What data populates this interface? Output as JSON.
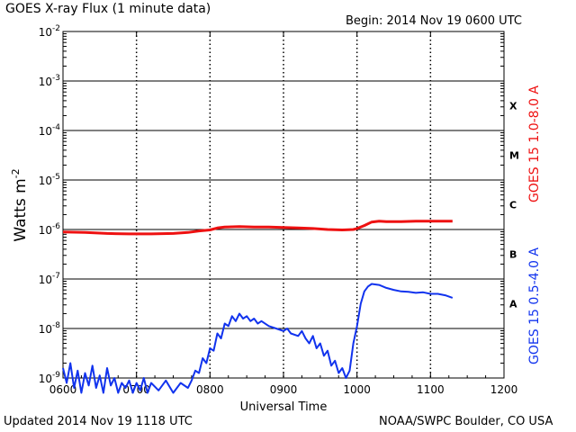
{
  "header": {
    "title": "GOES X-ray Flux (1 minute data)",
    "begin": "Begin: 2014 Nov 19 0600 UTC"
  },
  "footer": {
    "updated": "Updated 2014 Nov 19 1118 UTC",
    "credit": "NOAA/SWPC Boulder, CO USA"
  },
  "chart_data": {
    "type": "line",
    "title": "GOES X-ray Flux (1 minute data)",
    "xlabel": "Universal Time",
    "ylabel_base": "Watts m",
    "ylabel_sup": "-2",
    "x_unit": "UTC (HHMM)",
    "xlim": [
      6,
      12
    ],
    "x_ticks": [
      {
        "value": 6,
        "label": "0600"
      },
      {
        "value": 7,
        "label": "0700"
      },
      {
        "value": 8,
        "label": "0800"
      },
      {
        "value": 9,
        "label": "0900"
      },
      {
        "value": 10,
        "label": "1000"
      },
      {
        "value": 11,
        "label": "1100"
      },
      {
        "value": 12,
        "label": "1200"
      }
    ],
    "y_scale": "log",
    "ylim_exp": [
      -9,
      -2
    ],
    "y_ticks": [
      {
        "exp": -9,
        "base": "10",
        "sup": "-9"
      },
      {
        "exp": -8,
        "base": "10",
        "sup": "-8"
      },
      {
        "exp": -7,
        "base": "10",
        "sup": "-7"
      },
      {
        "exp": -6,
        "base": "10",
        "sup": "-6"
      },
      {
        "exp": -5,
        "base": "10",
        "sup": "-5"
      },
      {
        "exp": -4,
        "base": "10",
        "sup": "-4"
      },
      {
        "exp": -3,
        "base": "10",
        "sup": "-3"
      },
      {
        "exp": -2,
        "base": "10",
        "sup": "-2"
      }
    ],
    "flare_classes": [
      {
        "label": "A",
        "exp": -7.5
      },
      {
        "label": "B",
        "exp": -6.5
      },
      {
        "label": "C",
        "exp": -5.5
      },
      {
        "label": "M",
        "exp": -4.5
      },
      {
        "label": "X",
        "exp": -3.5
      }
    ],
    "grid": true,
    "series": [
      {
        "name": "GOES 15 1.0-8.0 A",
        "color": "#ee1111",
        "points": [
          [
            6.0,
            -6.05
          ],
          [
            6.3,
            -6.06
          ],
          [
            6.6,
            -6.08
          ],
          [
            6.9,
            -6.09
          ],
          [
            7.2,
            -6.09
          ],
          [
            7.5,
            -6.08
          ],
          [
            7.7,
            -6.06
          ],
          [
            7.85,
            -6.03
          ],
          [
            8.0,
            -6.01
          ],
          [
            8.1,
            -5.97
          ],
          [
            8.2,
            -5.95
          ],
          [
            8.4,
            -5.94
          ],
          [
            8.6,
            -5.95
          ],
          [
            8.8,
            -5.95
          ],
          [
            9.0,
            -5.96
          ],
          [
            9.2,
            -5.97
          ],
          [
            9.4,
            -5.98
          ],
          [
            9.6,
            -6.0
          ],
          [
            9.8,
            -6.01
          ],
          [
            9.95,
            -6.0
          ],
          [
            10.0,
            -5.98
          ],
          [
            10.1,
            -5.92
          ],
          [
            10.2,
            -5.85
          ],
          [
            10.3,
            -5.83
          ],
          [
            10.4,
            -5.84
          ],
          [
            10.6,
            -5.84
          ],
          [
            10.8,
            -5.83
          ],
          [
            11.0,
            -5.83
          ],
          [
            11.3,
            -5.83
          ]
        ]
      },
      {
        "name": "GOES 15 0.5-4.0 A",
        "color": "#1133ee",
        "points": [
          [
            6.0,
            -8.8
          ],
          [
            6.05,
            -9.1
          ],
          [
            6.1,
            -8.7
          ],
          [
            6.15,
            -9.2
          ],
          [
            6.2,
            -8.85
          ],
          [
            6.25,
            -9.3
          ],
          [
            6.3,
            -8.9
          ],
          [
            6.35,
            -9.15
          ],
          [
            6.4,
            -8.75
          ],
          [
            6.45,
            -9.2
          ],
          [
            6.5,
            -8.95
          ],
          [
            6.55,
            -9.3
          ],
          [
            6.6,
            -8.8
          ],
          [
            6.65,
            -9.15
          ],
          [
            6.7,
            -9.0
          ],
          [
            6.75,
            -9.3
          ],
          [
            6.8,
            -9.1
          ],
          [
            6.85,
            -9.2
          ],
          [
            6.9,
            -9.05
          ],
          [
            6.95,
            -9.3
          ],
          [
            7.0,
            -9.1
          ],
          [
            7.05,
            -9.25
          ],
          [
            7.1,
            -9.0
          ],
          [
            7.15,
            -9.3
          ],
          [
            7.2,
            -9.1
          ],
          [
            7.3,
            -9.25
          ],
          [
            7.4,
            -9.05
          ],
          [
            7.5,
            -9.3
          ],
          [
            7.6,
            -9.1
          ],
          [
            7.7,
            -9.2
          ],
          [
            7.75,
            -9.05
          ],
          [
            7.8,
            -8.85
          ],
          [
            7.85,
            -8.9
          ],
          [
            7.9,
            -8.6
          ],
          [
            7.95,
            -8.7
          ],
          [
            8.0,
            -8.4
          ],
          [
            8.05,
            -8.45
          ],
          [
            8.1,
            -8.1
          ],
          [
            8.15,
            -8.2
          ],
          [
            8.2,
            -7.9
          ],
          [
            8.25,
            -7.95
          ],
          [
            8.3,
            -7.75
          ],
          [
            8.35,
            -7.85
          ],
          [
            8.4,
            -7.7
          ],
          [
            8.45,
            -7.8
          ],
          [
            8.5,
            -7.75
          ],
          [
            8.55,
            -7.85
          ],
          [
            8.6,
            -7.8
          ],
          [
            8.65,
            -7.9
          ],
          [
            8.7,
            -7.85
          ],
          [
            8.8,
            -7.95
          ],
          [
            8.9,
            -8.0
          ],
          [
            9.0,
            -8.05
          ],
          [
            9.05,
            -8.0
          ],
          [
            9.1,
            -8.1
          ],
          [
            9.2,
            -8.15
          ],
          [
            9.25,
            -8.05
          ],
          [
            9.3,
            -8.2
          ],
          [
            9.35,
            -8.3
          ],
          [
            9.4,
            -8.15
          ],
          [
            9.45,
            -8.4
          ],
          [
            9.5,
            -8.3
          ],
          [
            9.55,
            -8.55
          ],
          [
            9.6,
            -8.45
          ],
          [
            9.65,
            -8.75
          ],
          [
            9.7,
            -8.65
          ],
          [
            9.75,
            -8.9
          ],
          [
            9.8,
            -8.8
          ],
          [
            9.85,
            -9.0
          ],
          [
            9.9,
            -8.85
          ],
          [
            9.95,
            -8.3
          ],
          [
            10.0,
            -7.95
          ],
          [
            10.05,
            -7.5
          ],
          [
            10.1,
            -7.25
          ],
          [
            10.15,
            -7.15
          ],
          [
            10.2,
            -7.1
          ],
          [
            10.3,
            -7.12
          ],
          [
            10.4,
            -7.18
          ],
          [
            10.5,
            -7.22
          ],
          [
            10.6,
            -7.25
          ],
          [
            10.7,
            -7.26
          ],
          [
            10.8,
            -7.28
          ],
          [
            10.9,
            -7.27
          ],
          [
            11.0,
            -7.3
          ],
          [
            11.1,
            -7.3
          ],
          [
            11.2,
            -7.33
          ],
          [
            11.3,
            -7.38
          ]
        ]
      }
    ]
  }
}
